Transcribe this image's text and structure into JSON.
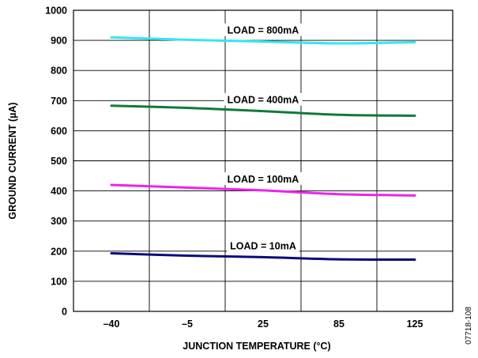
{
  "chart_data": {
    "type": "line",
    "xlabel": "JUNCTION TEMPERATURE (°C)",
    "ylabel": "GROUND CURRENT (µA)",
    "x_categories": [
      "–40",
      "–5",
      "25",
      "85",
      "125"
    ],
    "ylim": [
      0,
      1000
    ],
    "yticks": [
      "0",
      "100",
      "200",
      "300",
      "400",
      "500",
      "600",
      "700",
      "800",
      "900",
      "1000"
    ],
    "grid": true,
    "series": [
      {
        "name": "LOAD = 800mA",
        "color": "#33E6F0",
        "values": [
          910,
          902,
          896,
          890,
          894
        ]
      },
      {
        "name": "LOAD = 400mA",
        "color": "#0F7A3A",
        "values": [
          683,
          676,
          665,
          653,
          650
        ]
      },
      {
        "name": "LOAD = 100mA",
        "color": "#EE22EE",
        "values": [
          420,
          411,
          402,
          389,
          385
        ]
      },
      {
        "name": "LOAD = 10mA",
        "color": "#0A0A7A",
        "values": [
          193,
          185,
          180,
          173,
          172
        ]
      }
    ]
  },
  "figure_id": "07718-108"
}
